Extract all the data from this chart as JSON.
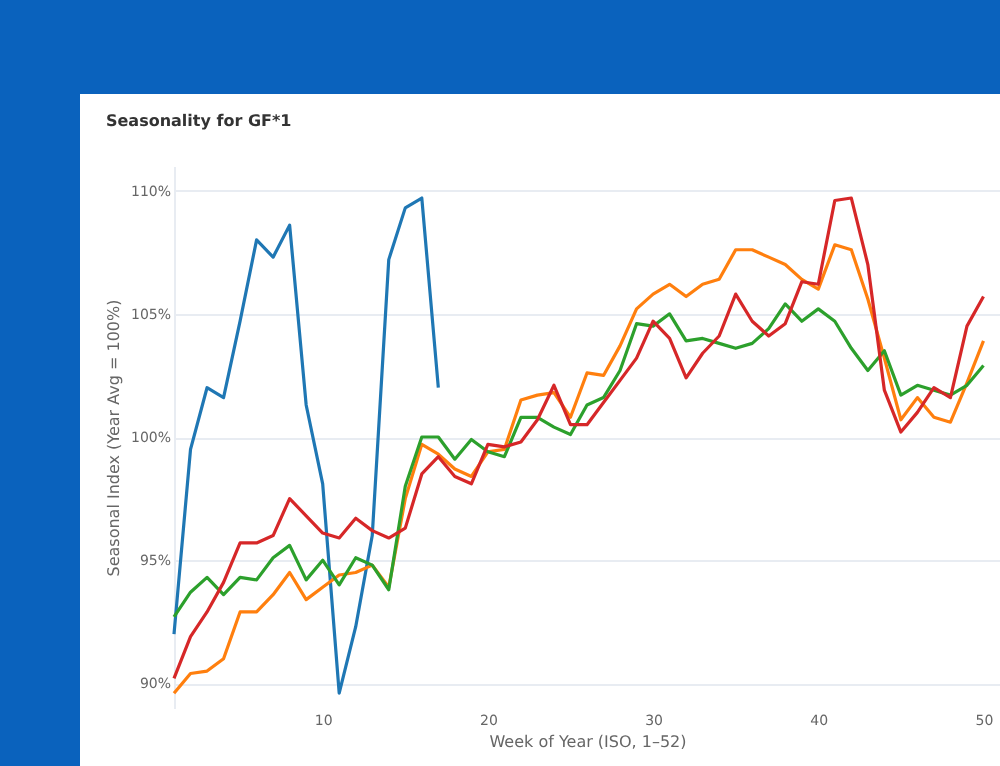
{
  "chart_data": {
    "type": "line",
    "title": "Seasonality for GF*1",
    "xlabel": "Week of Year (ISO, 1–52)",
    "ylabel": "Seasonal Index (Year Avg = 100%)",
    "x": [
      1,
      2,
      3,
      4,
      5,
      6,
      7,
      8,
      9,
      10,
      11,
      12,
      13,
      14,
      15,
      16,
      17,
      18,
      19,
      20,
      21,
      22,
      23,
      24,
      25,
      26,
      27,
      28,
      29,
      30,
      31,
      32,
      33,
      34,
      35,
      36,
      37,
      38,
      39,
      40,
      41,
      42,
      43,
      44,
      45,
      46,
      47,
      48,
      49,
      50
    ],
    "xlim": [
      1,
      51
    ],
    "xticks": [
      10,
      20,
      30,
      40,
      50
    ],
    "ylim": [
      89,
      111
    ],
    "yticks": [
      {
        "value": 90,
        "label": "90%"
      },
      {
        "value": 95,
        "label": "95%"
      },
      {
        "value": 100,
        "label": "100%"
      },
      {
        "value": 105,
        "label": "105%"
      },
      {
        "value": 110,
        "label": "110%"
      }
    ],
    "grid": "y",
    "line_style": "solid",
    "marker": "none",
    "series": [
      {
        "color": "#1f77b4",
        "x": [
          1,
          2,
          3,
          4,
          5,
          6,
          7,
          8,
          9,
          10,
          11,
          12,
          13,
          14,
          15,
          16,
          17
        ],
        "values": [
          92.0,
          99.5,
          102.0,
          101.6,
          104.7,
          108.0,
          107.3,
          108.6,
          101.3,
          98.1,
          89.6,
          92.3,
          96.0,
          107.2,
          109.3,
          109.7,
          102.0
        ]
      },
      {
        "color": "#ff7f0e",
        "values": [
          89.6,
          90.4,
          90.5,
          91.0,
          92.9,
          92.9,
          93.6,
          94.5,
          93.4,
          93.9,
          94.4,
          94.5,
          94.8,
          93.9,
          97.5,
          99.7,
          99.3,
          98.7,
          98.4,
          99.4,
          99.5,
          101.5,
          101.7,
          101.8,
          100.8,
          102.6,
          102.5,
          103.7,
          105.2,
          105.8,
          106.2,
          105.7,
          106.2,
          106.4,
          107.6,
          107.6,
          107.3,
          107.0,
          106.4,
          106.0,
          107.8,
          107.6,
          105.6,
          103.2,
          100.7,
          101.6,
          100.8,
          100.6,
          102.2,
          103.9
        ]
      },
      {
        "color": "#2ca02c",
        "values": [
          92.7,
          93.7,
          94.3,
          93.6,
          94.3,
          94.2,
          95.1,
          95.6,
          94.2,
          95.0,
          94.0,
          95.1,
          94.8,
          93.8,
          98.0,
          100.0,
          100.0,
          99.1,
          99.9,
          99.4,
          99.2,
          100.8,
          100.8,
          100.4,
          100.1,
          101.3,
          101.6,
          102.7,
          104.6,
          104.5,
          105.0,
          103.9,
          104.0,
          103.8,
          103.6,
          103.8,
          104.4,
          105.4,
          104.7,
          105.2,
          104.7,
          103.6,
          102.7,
          103.5,
          101.7,
          102.1,
          101.9,
          101.7,
          102.1,
          102.9
        ]
      },
      {
        "color": "#d62728",
        "values": [
          90.2,
          91.9,
          92.9,
          94.1,
          95.7,
          95.7,
          96.0,
          97.5,
          96.8,
          96.1,
          95.9,
          96.7,
          96.2,
          95.9,
          96.3,
          98.5,
          99.2,
          98.4,
          98.1,
          99.7,
          99.6,
          99.8,
          100.7,
          102.1,
          100.5,
          100.5,
          101.4,
          102.3,
          103.2,
          104.7,
          104.0,
          102.4,
          103.4,
          104.1,
          105.8,
          104.7,
          104.1,
          104.6,
          106.3,
          106.2,
          109.6,
          109.7,
          107.0,
          101.9,
          100.2,
          101.0,
          102.0,
          101.6,
          104.5,
          105.7
        ]
      }
    ]
  }
}
